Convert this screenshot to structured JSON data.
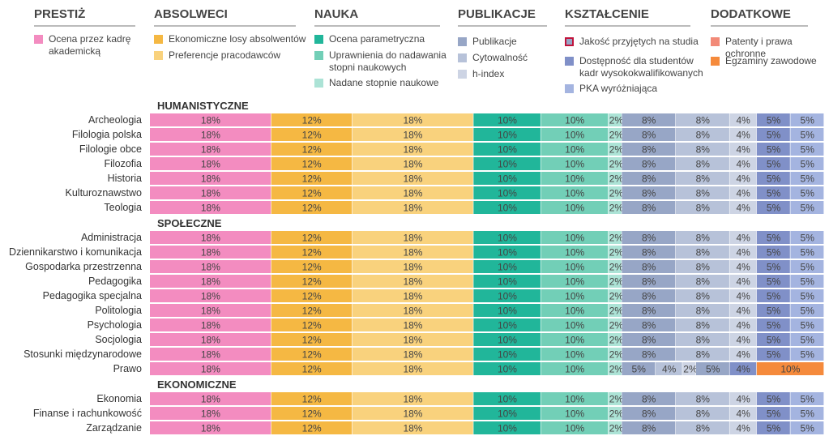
{
  "legend": {
    "groups": [
      {
        "title": "PRESTIŻ",
        "items": [
          {
            "label": "Ocena przez kadrę akademicką",
            "color": "#f38cc0"
          }
        ]
      },
      {
        "title": "ABSOLWECI",
        "items": [
          {
            "label": "Ekonomiczne losy absolwentów",
            "color": "#f5b843"
          },
          {
            "label": "Preferencje pracodawców",
            "color": "#f9d27d"
          }
        ]
      },
      {
        "title": "NAUKA",
        "items": [
          {
            "label": "Ocena parametryczna",
            "color": "#21b69a"
          },
          {
            "label": "Uprawnienia do nadawania stopni naukowych",
            "color": "#72cfb7"
          },
          {
            "label": "Nadane stopnie naukowe",
            "color": "#ace3d6"
          }
        ]
      },
      {
        "title": "PUBLIKACJE",
        "items": [
          {
            "label": "Publikacje",
            "color": "#97a6c6"
          },
          {
            "label": "Cytowalność",
            "color": "#b7c2d9"
          },
          {
            "label": "h-index",
            "color": "#cdd4e4"
          }
        ]
      },
      {
        "title": "KSZTAŁCENIE",
        "items": [
          {
            "label": "Jakość przyjętych na studia",
            "color": "#97a6c6",
            "border": "#c0143c"
          },
          {
            "label": "Dostępność dla studentów kadr wysokokwalifikowanych",
            "color": "#8090c8"
          },
          {
            "label": "PKA wyróżniająca",
            "color": "#a4b4e0"
          }
        ]
      },
      {
        "title": "DODATKOWE",
        "items": [
          {
            "label": "Patenty i prawa ochronne",
            "color": "#f28a78"
          },
          {
            "label": "Egzaminy zawodowe",
            "color": "#f58a3c"
          }
        ]
      }
    ]
  },
  "chart_data": {
    "type": "bar",
    "orientation": "horizontal-stacked",
    "unit": "%",
    "xlim": [
      0,
      100
    ],
    "segment_colors": [
      "#f38cc0",
      "#f5b843",
      "#f9d27d",
      "#21b69a",
      "#72cfb7",
      "#ace3d6",
      "#97a6c6",
      "#b7c2d9",
      "#cdd4e4",
      "#97a6c6",
      "#8090c8",
      "#a4b4e0"
    ],
    "standard": {
      "values": [
        18,
        12,
        18,
        10,
        10,
        2,
        8,
        8,
        4,
        5,
        5
      ],
      "colors": [
        "#f38cc0",
        "#f5b843",
        "#f9d27d",
        "#21b69a",
        "#72cfb7",
        "#ace3d6",
        "#97a6c6",
        "#b7c2d9",
        "#cdd4e4",
        "#8090c8",
        "#a4b4e0"
      ],
      "labels": [
        "18%",
        "12%",
        "18%",
        "10%",
        "10%",
        "2%",
        "8%",
        "8%",
        "4%",
        "5%",
        "5%"
      ]
    },
    "special": {
      "Prawo": {
        "values": [
          18,
          12,
          18,
          10,
          10,
          2,
          5,
          4,
          2,
          5,
          4,
          10
        ],
        "colors": [
          "#f38cc0",
          "#f5b843",
          "#f9d27d",
          "#21b69a",
          "#72cfb7",
          "#ace3d6",
          "#97a6c6",
          "#b7c2d9",
          "#cdd4e4",
          "#97a6c6",
          "#8090c8",
          "#f58a3c"
        ],
        "labels": [
          "18%",
          "12%",
          "18%",
          "10%",
          "10%",
          "2%",
          "5%",
          "4%",
          "2%",
          "5%",
          "4%",
          "10%"
        ]
      }
    },
    "categories": [
      {
        "name": "HUMANISTYCZNE",
        "rows": [
          "Archeologia",
          "Filologia polska",
          "Filologie obce",
          "Filozofia",
          "Historia",
          "Kulturoznawstwo",
          "Teologia"
        ]
      },
      {
        "name": "SPOŁECZNE",
        "rows": [
          "Administracja",
          "Dziennikarstwo i komunikacja",
          "Gospodarka przestrzenna",
          "Pedagogika",
          "Pedagogika specjalna",
          "Politologia",
          "Psychologia",
          "Socjologia",
          "Stosunki międzynarodowe",
          "Prawo"
        ]
      },
      {
        "name": "EKONOMICZNE",
        "rows": [
          "Ekonomia",
          "Finanse i rachunkowość",
          "Zarządzanie"
        ]
      }
    ]
  }
}
